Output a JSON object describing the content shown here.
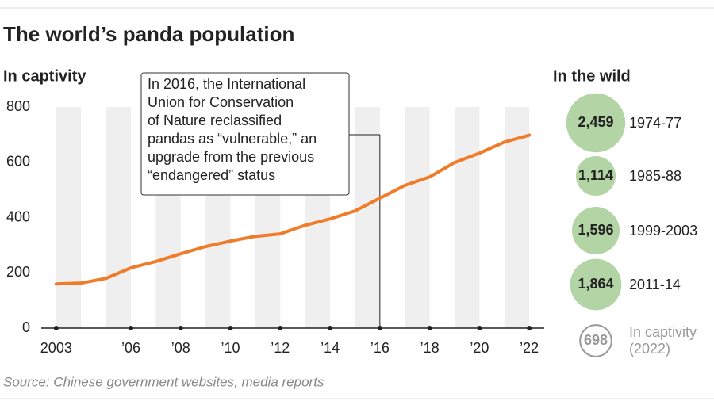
{
  "title": "The world’s panda population",
  "source": "Source: Chinese government websites, media reports",
  "chart_data": [
    {
      "type": "line",
      "title": "In captivity",
      "x": [
        2003,
        2004,
        2005,
        2006,
        2007,
        2008,
        2009,
        2010,
        2011,
        2012,
        2013,
        2014,
        2015,
        2016,
        2017,
        2018,
        2019,
        2020,
        2021,
        2022
      ],
      "values": [
        160,
        163,
        180,
        218,
        241,
        269,
        295,
        315,
        332,
        341,
        372,
        395,
        424,
        470,
        516,
        547,
        599,
        633,
        673,
        698
      ],
      "color": "#f07c2a",
      "xlim": [
        2002.4,
        2022.6
      ],
      "xticks": [
        2003,
        {
          "value": 2006,
          "label": "’06"
        },
        {
          "value": 2008,
          "label": "’08"
        },
        {
          "value": 2010,
          "label": "’10"
        },
        {
          "value": 2012,
          "label": "’12"
        },
        {
          "value": 2014,
          "label": "’14"
        },
        {
          "value": 2016,
          "label": "’16"
        },
        {
          "value": 2018,
          "label": "’18"
        },
        {
          "value": 2020,
          "label": "’20"
        },
        {
          "value": 2022,
          "label": "’22"
        }
      ],
      "ylim": [
        0,
        800
      ],
      "yticks": [
        0,
        200,
        400,
        600,
        800
      ],
      "annotation": {
        "x": 2016,
        "lines": [
          "In 2016, the International",
          "Union for Conservation",
          "of Nature reclassified",
          "pandas as “vulnerable,” an",
          "upgrade from the previous",
          "“endangered” status"
        ]
      }
    },
    {
      "type": "bubble",
      "title": "In the wild",
      "categories": [
        "1974-77",
        "1985-88",
        "1999-2003",
        "2011-14",
        "In captivity (2022)"
      ],
      "values": [
        2459,
        1114,
        1596,
        1864,
        698
      ],
      "value_labels": [
        "2,459",
        "1,114",
        "1,596",
        "1,864",
        "698"
      ],
      "colors": [
        "#b3d4a5",
        "#b3d4a5",
        "#b3d4a5",
        "#b3d4a5",
        "#ffffff"
      ]
    }
  ]
}
